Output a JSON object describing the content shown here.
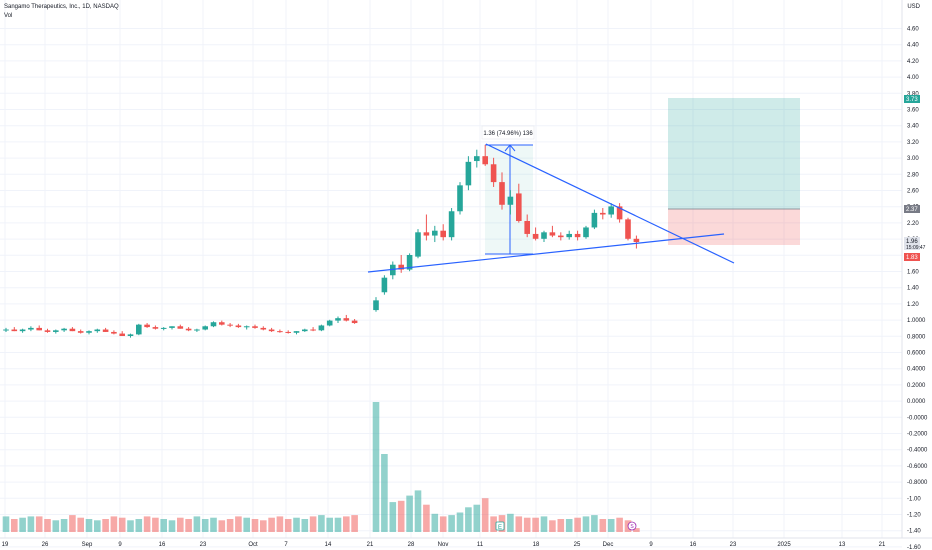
{
  "header": {
    "symbol_title": "Sangamo Therapeutics, Inc., 1D, NASDAQ",
    "volume_label": "Vol",
    "currency": "USD"
  },
  "chart_data": {
    "type": "candlestick",
    "price_axis": {
      "labels": [
        "4.60",
        "4.40",
        "4.20",
        "4.00",
        "3.80",
        "3.60",
        "3.40",
        "3.20",
        "3.00",
        "2.80",
        "2.60",
        "2.40",
        "2.20",
        "2.00",
        "1.80",
        "1.60",
        "1.40",
        "1.20",
        "1.0000",
        "0.8000",
        "0.6000",
        "0.4000",
        "0.2000",
        "0.0000",
        "-0.0000",
        "-0.2000",
        "-0.4000",
        "-0.6000",
        "-0.8000",
        "-1.00",
        "-1.20",
        "-1.40",
        "-1.60"
      ]
    },
    "price_badges": [
      {
        "text": "3.73",
        "color": "#26a69a"
      },
      {
        "text": "2.37",
        "color": "#787b86"
      },
      {
        "text": "1.96",
        "sub": "15:09:47",
        "color": "#e0e3eb",
        "text_color": "#131722"
      },
      {
        "text": "1.83",
        "color": "#ef5350"
      }
    ],
    "date_axis": {
      "labels": [
        "19",
        "26",
        "Sep",
        "9",
        "16",
        "23",
        "Oct",
        "7",
        "14",
        "21",
        "28",
        "Nov",
        "11",
        "18",
        "25",
        "Dec",
        "9",
        "16",
        "23",
        "2025",
        "13",
        "21"
      ]
    },
    "measure_label": "1.36 (74.96%) 136",
    "colors": {
      "up": "#26a69a",
      "down": "#ef5350",
      "trendline": "#2962ff"
    }
  }
}
